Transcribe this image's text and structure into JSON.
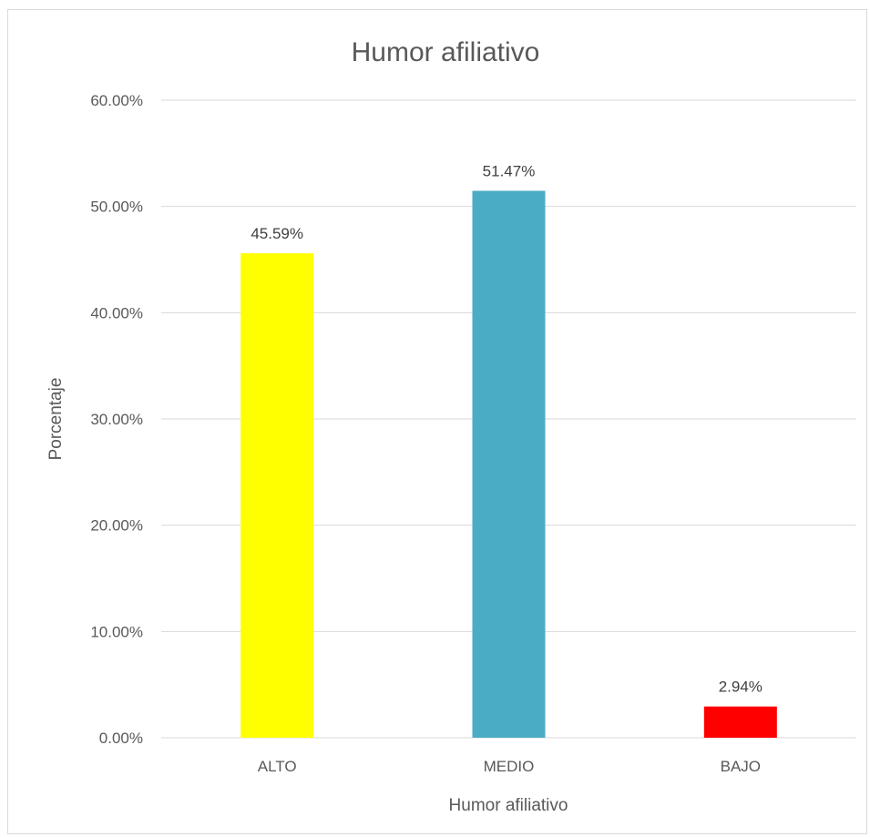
{
  "chart_data": {
    "type": "bar",
    "title": "Humor afiliativo",
    "xlabel": "Humor afiliativo",
    "ylabel": "Porcentaje",
    "categories": [
      "ALTO",
      "MEDIO",
      "BAJO"
    ],
    "values": [
      45.59,
      51.47,
      2.94
    ],
    "data_labels": [
      "45.59%",
      "51.47%",
      "2.94%"
    ],
    "bar_colors": [
      "#ffff00",
      "#4bacc6",
      "#ff0000"
    ],
    "ylim": [
      0,
      60
    ],
    "yticks": [
      0,
      10,
      20,
      30,
      40,
      50,
      60
    ],
    "ytick_labels": [
      "0.00%",
      "10.00%",
      "20.00%",
      "30.00%",
      "40.00%",
      "50.00%",
      "60.00%"
    ],
    "grid": true,
    "legend": "none"
  }
}
